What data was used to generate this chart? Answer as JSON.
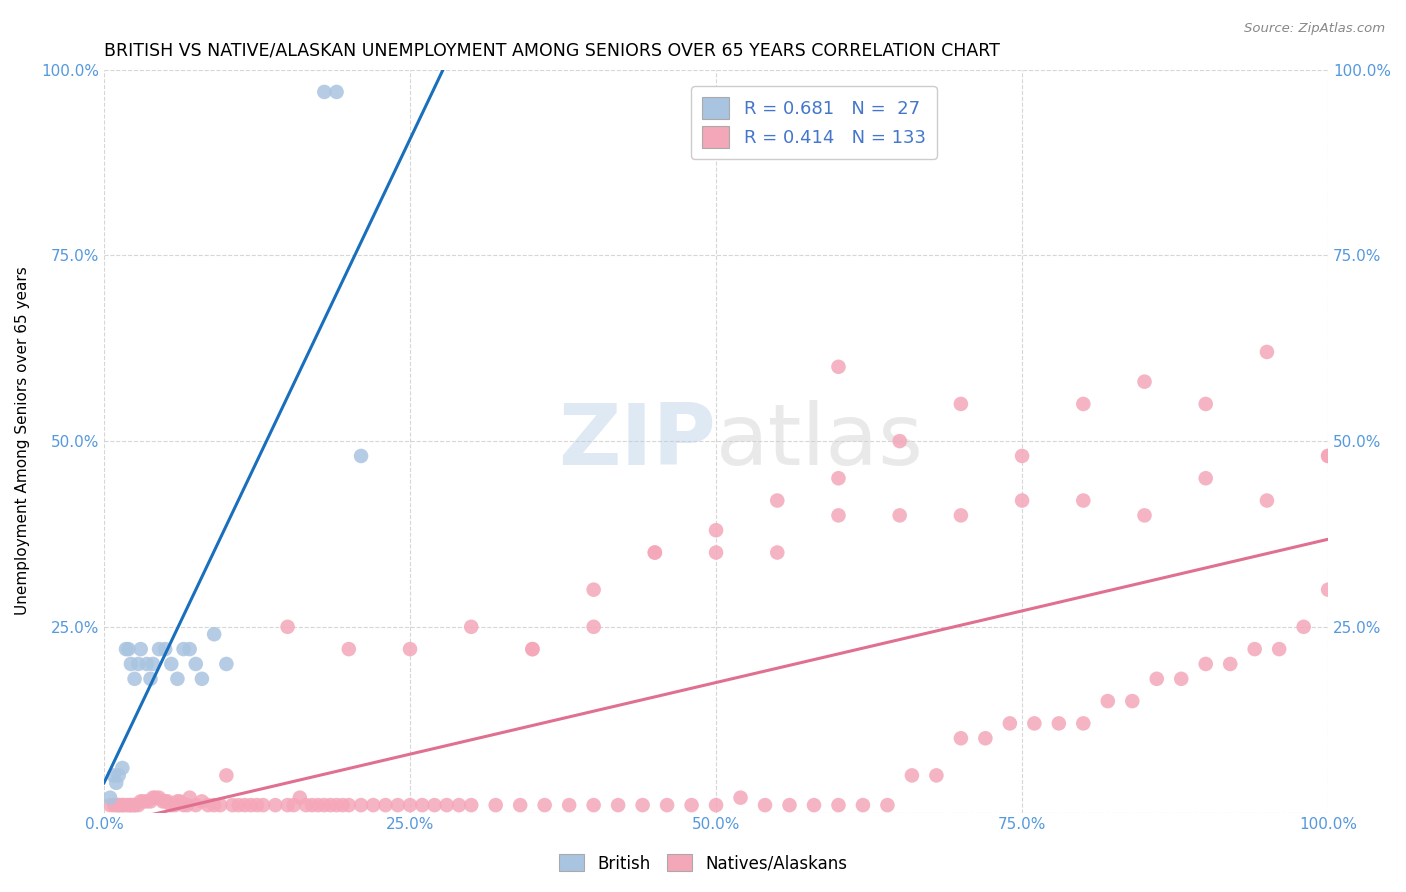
{
  "title": "BRITISH VS NATIVE/ALASKAN UNEMPLOYMENT AMONG SENIORS OVER 65 YEARS CORRELATION CHART",
  "source": "Source: ZipAtlas.com",
  "ylabel": "Unemployment Among Seniors over 65 years",
  "xlim": [
    0,
    1.0
  ],
  "ylim": [
    0,
    1.0
  ],
  "xticks": [
    0,
    0.25,
    0.5,
    0.75,
    1.0
  ],
  "yticks": [
    0,
    0.25,
    0.5,
    0.75,
    1.0
  ],
  "xticklabels": [
    "0.0%",
    "25.0%",
    "50.0%",
    "75.0%",
    "100.0%"
  ],
  "yticklabels": [
    "",
    "25.0%",
    "50.0%",
    "75.0%",
    "100.0%"
  ],
  "british_R": 0.681,
  "british_N": 27,
  "native_R": 0.414,
  "native_N": 133,
  "british_color": "#a8c4e0",
  "native_color": "#f4a7b9",
  "british_line_color": "#1a6fbd",
  "native_line_color": "#e07090",
  "legend_text_color": "#4477cc",
  "british_x": [
    0.005,
    0.008,
    0.01,
    0.012,
    0.015,
    0.018,
    0.02,
    0.022,
    0.025,
    0.028,
    0.03,
    0.035,
    0.038,
    0.04,
    0.045,
    0.05,
    0.055,
    0.06,
    0.065,
    0.07,
    0.075,
    0.08,
    0.09,
    0.1,
    0.18,
    0.19,
    0.21
  ],
  "british_y": [
    0.02,
    0.05,
    0.04,
    0.05,
    0.06,
    0.22,
    0.22,
    0.2,
    0.18,
    0.2,
    0.22,
    0.2,
    0.18,
    0.2,
    0.22,
    0.22,
    0.2,
    0.18,
    0.22,
    0.22,
    0.2,
    0.18,
    0.24,
    0.2,
    0.97,
    0.97,
    0.48
  ],
  "native_x": [
    0.005,
    0.008,
    0.01,
    0.012,
    0.012,
    0.015,
    0.015,
    0.018,
    0.02,
    0.022,
    0.022,
    0.025,
    0.025,
    0.028,
    0.03,
    0.032,
    0.035,
    0.038,
    0.04,
    0.042,
    0.045,
    0.048,
    0.05,
    0.052,
    0.055,
    0.058,
    0.06,
    0.062,
    0.065,
    0.068,
    0.07,
    0.075,
    0.08,
    0.085,
    0.09,
    0.095,
    0.1,
    0.105,
    0.11,
    0.115,
    0.12,
    0.125,
    0.13,
    0.14,
    0.15,
    0.155,
    0.16,
    0.165,
    0.17,
    0.175,
    0.18,
    0.185,
    0.19,
    0.195,
    0.2,
    0.21,
    0.22,
    0.23,
    0.24,
    0.25,
    0.26,
    0.27,
    0.28,
    0.29,
    0.3,
    0.32,
    0.34,
    0.36,
    0.38,
    0.4,
    0.42,
    0.44,
    0.46,
    0.48,
    0.5,
    0.52,
    0.54,
    0.56,
    0.58,
    0.6,
    0.62,
    0.64,
    0.66,
    0.68,
    0.7,
    0.72,
    0.74,
    0.76,
    0.78,
    0.8,
    0.82,
    0.84,
    0.86,
    0.88,
    0.9,
    0.92,
    0.94,
    0.96,
    0.98,
    1.0,
    0.15,
    0.2,
    0.25,
    0.3,
    0.35,
    0.4,
    0.45,
    0.5,
    0.55,
    0.6,
    0.65,
    0.7,
    0.75,
    0.8,
    0.85,
    0.9,
    0.95,
    1.0,
    0.35,
    0.4,
    0.45,
    0.5,
    0.55,
    0.6,
    0.65,
    0.7,
    0.75,
    0.8,
    0.85,
    0.9,
    0.95,
    1.0,
    0.6
  ],
  "native_y": [
    0.01,
    0.01,
    0.01,
    0.01,
    0.01,
    0.01,
    0.01,
    0.01,
    0.01,
    0.01,
    0.01,
    0.01,
    0.01,
    0.01,
    0.015,
    0.015,
    0.015,
    0.015,
    0.02,
    0.02,
    0.02,
    0.015,
    0.015,
    0.015,
    0.01,
    0.01,
    0.015,
    0.015,
    0.01,
    0.01,
    0.02,
    0.01,
    0.015,
    0.01,
    0.01,
    0.01,
    0.05,
    0.01,
    0.01,
    0.01,
    0.01,
    0.01,
    0.01,
    0.01,
    0.01,
    0.01,
    0.02,
    0.01,
    0.01,
    0.01,
    0.01,
    0.01,
    0.01,
    0.01,
    0.01,
    0.01,
    0.01,
    0.01,
    0.01,
    0.01,
    0.01,
    0.01,
    0.01,
    0.01,
    0.01,
    0.01,
    0.01,
    0.01,
    0.01,
    0.01,
    0.01,
    0.01,
    0.01,
    0.01,
    0.01,
    0.02,
    0.01,
    0.01,
    0.01,
    0.01,
    0.01,
    0.01,
    0.05,
    0.05,
    0.1,
    0.1,
    0.12,
    0.12,
    0.12,
    0.12,
    0.15,
    0.15,
    0.18,
    0.18,
    0.2,
    0.2,
    0.22,
    0.22,
    0.25,
    0.3,
    0.25,
    0.22,
    0.22,
    0.25,
    0.22,
    0.3,
    0.35,
    0.35,
    0.35,
    0.4,
    0.4,
    0.4,
    0.42,
    0.42,
    0.4,
    0.45,
    0.42,
    0.48,
    0.22,
    0.25,
    0.35,
    0.38,
    0.42,
    0.45,
    0.5,
    0.55,
    0.48,
    0.55,
    0.58,
    0.55,
    0.62,
    0.48,
    0.6
  ]
}
